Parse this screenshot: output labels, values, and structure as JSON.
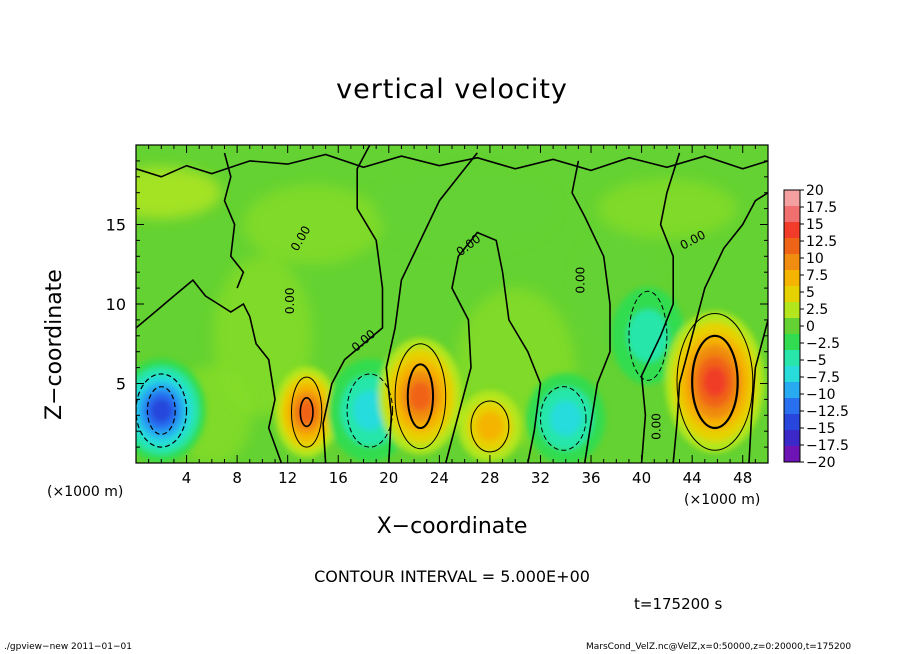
{
  "title": "vertical velocity",
  "xlabel": "X−coordinate",
  "ylabel": "Z−coordinate",
  "x_unit_left": "(×1000 m)",
  "x_unit_right": "(×1000 m)",
  "contour_interval": "CONTOUR INTERVAL = 5.000E+00",
  "time_label": "t=175200 s",
  "footer_left": "./gpview−new  2011−01−01",
  "footer_right": "MarsCond_VelZ.nc@VelZ,x=0:50000,z=0:20000,t=175200",
  "chart_data": {
    "type": "heatmap",
    "title": "vertical velocity",
    "xlabel": "X−coordinate",
    "ylabel": "Z−coordinate",
    "x_unit": "(×1000 m)",
    "xlim": [
      0,
      50
    ],
    "ylim": [
      0,
      20
    ],
    "x_ticks": [
      4,
      8,
      12,
      16,
      20,
      24,
      28,
      32,
      36,
      40,
      44,
      48
    ],
    "y_ticks": [
      5,
      10,
      15
    ],
    "contour_interval": 5.0,
    "contour_label": "0.00",
    "colorbar": {
      "levels": [
        "20",
        "17.5",
        "15",
        "12.5",
        "10",
        "7.5",
        "5",
        "2.5",
        "0",
        "−2.5",
        "−5",
        "−7.5",
        "−10",
        "−12.5",
        "−15",
        "−17.5",
        "−20"
      ],
      "colors": [
        "#f5a0a0",
        "#f07070",
        "#f03c28",
        "#f06418",
        "#f08c10",
        "#f5b400",
        "#e6d200",
        "#b4e61e",
        "#64d232",
        "#32dc50",
        "#28e6aa",
        "#28dcdc",
        "#28aaf0",
        "#2870f0",
        "#2846dc",
        "#3c28c8",
        "#6e14b4"
      ]
    },
    "features": [
      {
        "x": 2.0,
        "z": 3.3,
        "value": -15
      },
      {
        "x": 13.5,
        "z": 3.2,
        "value": 12
      },
      {
        "x": 18.5,
        "z": 3.3,
        "value": -8
      },
      {
        "x": 22.5,
        "z": 4.2,
        "value": 13
      },
      {
        "x": 28.0,
        "z": 2.3,
        "value": 7
      },
      {
        "x": 34.0,
        "z": 2.8,
        "value": -7
      },
      {
        "x": 40.5,
        "z": 8.0,
        "value": -5
      },
      {
        "x": 45.8,
        "z": 5.1,
        "value": 14
      }
    ],
    "time": "t=175200 s",
    "footer": "MarsCond_VelZ.nc@VelZ,x=0:50000,z=0:20000,t=175200"
  }
}
